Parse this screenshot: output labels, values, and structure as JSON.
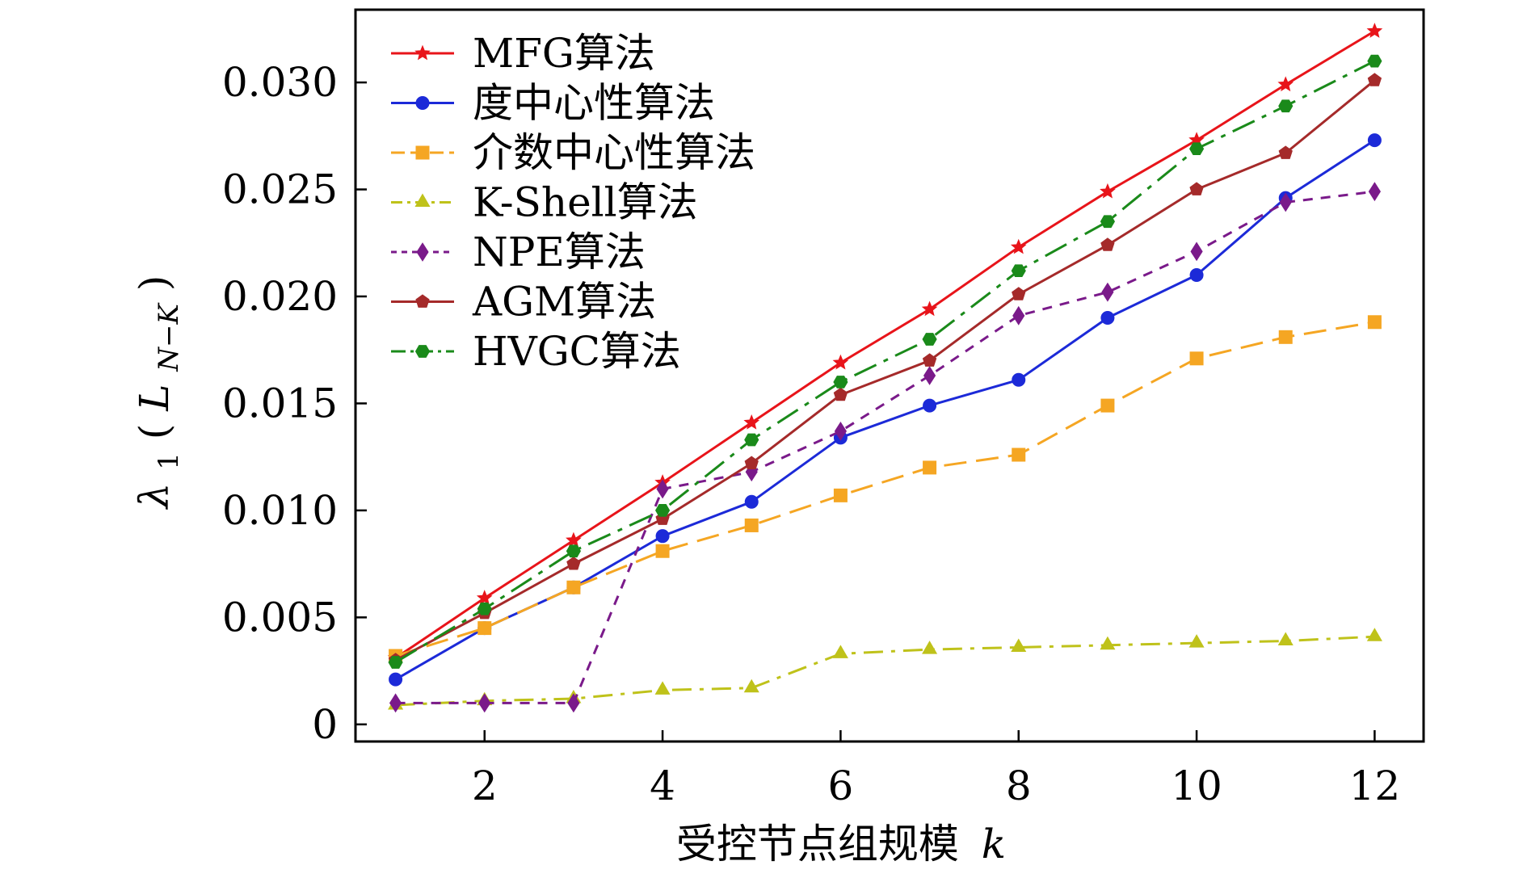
{
  "chart_data": {
    "type": "line",
    "title": "",
    "xlabel": "受控节点组规模 k",
    "xlabel_text": "受控节点组规模",
    "xlabel_var": "k",
    "ylabel": "λ1(L_{N−K})",
    "ylabel_parts": {
      "lambda": "λ",
      "sub1": "1",
      "paren_open": "(",
      "L": "L",
      "sub": "N−K",
      "paren_close": ")"
    },
    "xlim": [
      0.55,
      12.55
    ],
    "ylim": [
      -0.0008,
      0.0334
    ],
    "xticks": [
      2,
      4,
      6,
      8,
      10,
      12
    ],
    "xtick_labels": [
      "2",
      "4",
      "6",
      "8",
      "10",
      "12"
    ],
    "yticks": [
      0,
      0.005,
      0.01,
      0.015,
      0.02,
      0.025,
      0.03
    ],
    "ytick_labels": [
      "0",
      "0.005",
      "0.010",
      "0.015",
      "0.020",
      "0.025",
      "0.030"
    ],
    "grid": false,
    "legend_position": "top-left",
    "x": [
      1,
      2,
      3,
      4,
      5,
      6,
      7,
      8,
      9,
      10,
      11,
      12
    ],
    "series": [
      {
        "name": "MFG算法",
        "color": "#e8141a",
        "marker": "star",
        "dash": "solid",
        "values": [
          0.0031,
          0.0059,
          0.0086,
          0.0113,
          0.0141,
          0.0169,
          0.0194,
          0.0223,
          0.0249,
          0.0273,
          0.0299,
          0.0324
        ]
      },
      {
        "name": "度中心性算法",
        "color": "#1c2ad8",
        "marker": "circle",
        "dash": "solid",
        "values": [
          0.0021,
          0.0045,
          0.0064,
          0.0088,
          0.0104,
          0.0134,
          0.0149,
          0.0161,
          0.019,
          0.021,
          0.0246,
          0.0273
        ]
      },
      {
        "name": "介数中心性算法",
        "color": "#f5a623",
        "marker": "square",
        "dash": "longdash",
        "values": [
          0.0032,
          0.0045,
          0.0064,
          0.0081,
          0.0093,
          0.0107,
          0.012,
          0.0126,
          0.0149,
          0.0171,
          0.0181,
          0.0188
        ]
      },
      {
        "name": "K-Shell算法",
        "color": "#bfc21a",
        "marker": "triangle",
        "dash": "dashdot",
        "values": [
          0.0009,
          0.0011,
          0.0012,
          0.0016,
          0.0017,
          0.0033,
          0.0035,
          0.0036,
          0.0037,
          0.0038,
          0.0039,
          0.0041
        ]
      },
      {
        "name": "NPE算法",
        "color": "#7a1a8a",
        "marker": "diamond",
        "dash": "dashed",
        "values": [
          0.001,
          0.001,
          0.001,
          0.011,
          0.0118,
          0.0137,
          0.0163,
          0.0191,
          0.0202,
          0.0221,
          0.0244,
          0.0249
        ]
      },
      {
        "name": "AGM算法",
        "color": "#a52a2a",
        "marker": "pentagon",
        "dash": "solid",
        "values": [
          0.003,
          0.0052,
          0.0075,
          0.0096,
          0.0122,
          0.0154,
          0.017,
          0.0201,
          0.0224,
          0.025,
          0.0267,
          0.0301
        ]
      },
      {
        "name": "HVGC算法",
        "color": "#1a8a1a",
        "marker": "hexagon",
        "dash": "longdashdot",
        "values": [
          0.0029,
          0.0054,
          0.0081,
          0.01,
          0.0133,
          0.016,
          0.018,
          0.0212,
          0.0235,
          0.0269,
          0.0289,
          0.031
        ]
      }
    ]
  }
}
